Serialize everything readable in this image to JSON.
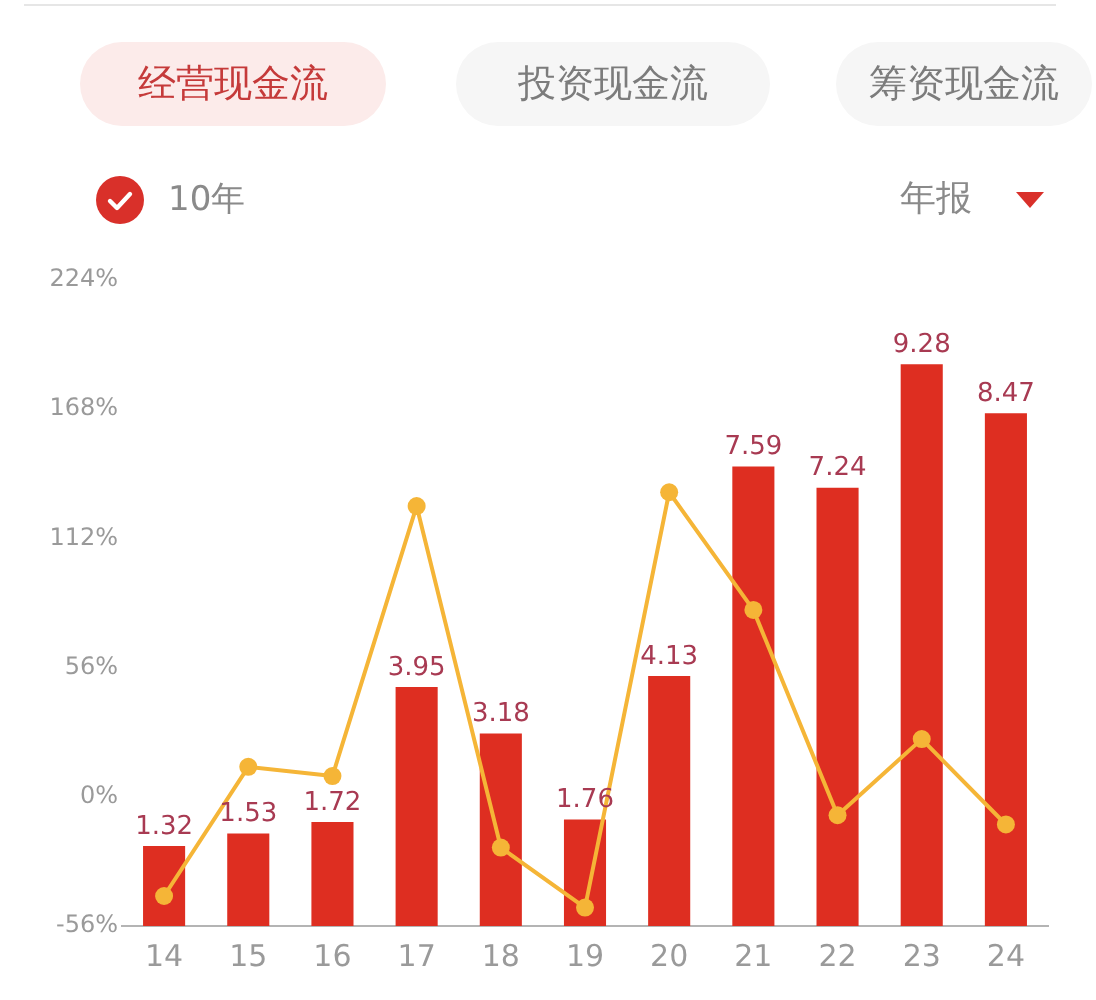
{
  "chart_data": {
    "type": "bar",
    "title": "经营现金流",
    "annotations": [
      "投资现金流",
      "筹资现金流",
      "10年",
      "年报"
    ],
    "categories": [
      "14",
      "15",
      "16",
      "17",
      "18",
      "19",
      "20",
      "21",
      "22",
      "23",
      "24"
    ],
    "series": [
      {
        "axis": "y2",
        "color": "#de2e21",
        "values": [
          1.32,
          1.53,
          1.72,
          3.95,
          3.18,
          1.76,
          4.13,
          7.59,
          7.24,
          9.28,
          8.47
        ],
        "value_labels": [
          "1.32",
          "1.53",
          "1.72",
          "3.95",
          "3.18",
          "1.76",
          "4.13",
          "7.59",
          "7.24",
          "9.28",
          "8.47"
        ]
      },
      {
        "type": "line",
        "color": "#f5b537",
        "values": [
          -43,
          13,
          9,
          126,
          -22,
          -48,
          132,
          81,
          -8,
          25,
          -12
        ]
      }
    ],
    "ylim": [
      -56,
      224
    ],
    "yticks": [
      {
        "value": -56,
        "label": "-56%"
      },
      {
        "value": 0,
        "label": "0%"
      },
      {
        "value": 56,
        "label": "56%"
      },
      {
        "value": 112,
        "label": "112%"
      },
      {
        "value": 168,
        "label": "168%"
      },
      {
        "value": 224,
        "label": "224%"
      }
    ],
    "marker": "circle",
    "line_style": "solid"
  }
}
